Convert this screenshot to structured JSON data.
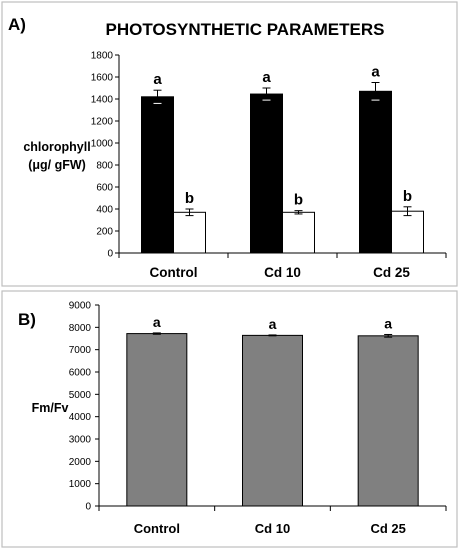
{
  "figure": {
    "title": "PHOTOSYNTHETIC PARAMETERS"
  },
  "chart_data": [
    {
      "panel_label": "A)",
      "type": "bar",
      "title": "PHOTOSYNTHETIC PARAMETERS",
      "ylabel_lines": [
        "chlorophyll",
        "(μg/ gFW)"
      ],
      "xlabel": "",
      "ylim": [
        0,
        1800
      ],
      "yticks": [
        0,
        200,
        400,
        600,
        800,
        1000,
        1200,
        1400,
        1600,
        1800
      ],
      "categories": [
        "Control",
        "Cd 10",
        "Cd 25"
      ],
      "series": [
        {
          "color": "#000000",
          "values": [
            1420,
            1445,
            1470
          ],
          "errors": [
            60,
            55,
            80
          ],
          "significance": [
            "a",
            "a",
            "a"
          ]
        },
        {
          "color": "#ffffff",
          "values": [
            370,
            370,
            380
          ],
          "errors": [
            30,
            15,
            40
          ],
          "significance": [
            "b",
            "b",
            "b"
          ]
        }
      ],
      "grid": false
    },
    {
      "panel_label": "B)",
      "type": "bar",
      "title": "",
      "ylabel_lines": [
        "Fm/Fv"
      ],
      "xlabel": "",
      "ylim": [
        0,
        9000
      ],
      "yticks": [
        0,
        1000,
        2000,
        3000,
        4000,
        5000,
        6000,
        7000,
        8000,
        9000
      ],
      "categories": [
        "Control",
        "Cd 10",
        "Cd 25"
      ],
      "series": [
        {
          "color": "#808080",
          "values": [
            7720,
            7640,
            7620
          ],
          "errors": [
            30,
            20,
            60
          ],
          "significance": [
            "a",
            "a",
            "a"
          ]
        }
      ],
      "grid": false
    }
  ]
}
